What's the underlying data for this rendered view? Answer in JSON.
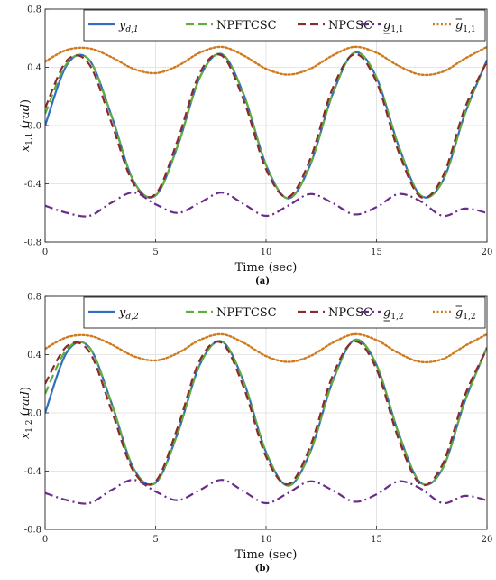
{
  "chart_data": [
    {
      "type": "line",
      "caption": "(a)",
      "xlabel": "Time (sec)",
      "ylabel": "x1,1 (rad)",
      "xlim": [
        0,
        20
      ],
      "ylim": [
        -0.8,
        0.8
      ],
      "xticks": [
        0,
        5,
        10,
        15,
        20
      ],
      "yticks": [
        -0.8,
        -0.4,
        0.0,
        0.4,
        0.8
      ],
      "ytick_labels": [
        "-0.8",
        "-0.4",
        "0.0",
        "0.4",
        "0.8"
      ],
      "grid": true,
      "legend_position": "top",
      "x": [
        0,
        1,
        2,
        3,
        4,
        5,
        6,
        7,
        8,
        9,
        10,
        11,
        12,
        13,
        14,
        15,
        16,
        17,
        18,
        19,
        20
      ],
      "series": [
        {
          "name": "y_{d,1}",
          "label_main": "y",
          "label_sub": "d,1",
          "color": "#2f6fc0",
          "dash": "solid",
          "values": [
            0.0,
            0.42,
            0.45,
            0.07,
            -0.38,
            -0.48,
            -0.14,
            0.33,
            0.49,
            0.21,
            -0.27,
            -0.5,
            -0.27,
            0.21,
            0.5,
            0.33,
            -0.14,
            -0.48,
            -0.38,
            0.08,
            0.45
          ]
        },
        {
          "name": "NPFTCSC",
          "label_main": "NPFTCSC",
          "label_sub": "",
          "color": "#5fae3a",
          "dash": "dashed",
          "values": [
            0.08,
            0.43,
            0.45,
            0.07,
            -0.38,
            -0.48,
            -0.14,
            0.33,
            0.49,
            0.21,
            -0.27,
            -0.5,
            -0.27,
            0.21,
            0.5,
            0.33,
            -0.14,
            -0.48,
            -0.38,
            0.08,
            0.45
          ]
        },
        {
          "name": "NPCSC",
          "label_main": "NPCSC",
          "label_sub": "",
          "color": "#8b2a2a",
          "dash": "dashed",
          "values": [
            0.12,
            0.45,
            0.42,
            0.02,
            -0.4,
            -0.47,
            -0.1,
            0.36,
            0.48,
            0.17,
            -0.3,
            -0.49,
            -0.23,
            0.25,
            0.49,
            0.3,
            -0.18,
            -0.49,
            -0.35,
            0.12,
            0.44
          ]
        },
        {
          "name": "g_{1,1}",
          "label_main": "g",
          "label_sub": "1,1",
          "color": "#6a2c8a",
          "dash": "dashdot",
          "values": [
            -0.55,
            -0.6,
            -0.62,
            -0.53,
            -0.46,
            -0.54,
            -0.6,
            -0.53,
            -0.46,
            -0.54,
            -0.62,
            -0.55,
            -0.47,
            -0.53,
            -0.61,
            -0.56,
            -0.47,
            -0.52,
            -0.62,
            -0.57,
            -0.6
          ]
        },
        {
          "name": "ḡ_{1,1}",
          "label_main": "g",
          "label_sub": "1,1",
          "color": "#d07a1e",
          "dash": "dotted",
          "values": [
            0.44,
            0.52,
            0.53,
            0.47,
            0.39,
            0.36,
            0.41,
            0.5,
            0.54,
            0.48,
            0.39,
            0.35,
            0.39,
            0.48,
            0.54,
            0.5,
            0.41,
            0.35,
            0.37,
            0.46,
            0.54
          ]
        }
      ]
    },
    {
      "type": "line",
      "caption": "(b)",
      "xlabel": "Time (sec)",
      "ylabel": "x1,2 (rad)",
      "xlim": [
        0,
        20
      ],
      "ylim": [
        -0.8,
        0.8
      ],
      "xticks": [
        0,
        5,
        10,
        15,
        20
      ],
      "yticks": [
        -0.8,
        -0.4,
        0.0,
        0.4,
        0.8
      ],
      "ytick_labels": [
        "-0.8",
        "-0.4",
        "0.0",
        "0.4",
        "0.8"
      ],
      "grid": true,
      "legend_position": "top",
      "x": [
        0,
        1,
        2,
        3,
        4,
        5,
        6,
        7,
        8,
        9,
        10,
        11,
        12,
        13,
        14,
        15,
        16,
        17,
        18,
        19,
        20
      ],
      "series": [
        {
          "name": "y_{d,2}",
          "label_main": "y",
          "label_sub": "d,2",
          "color": "#2f6fc0",
          "dash": "solid",
          "values": [
            0.0,
            0.42,
            0.45,
            0.07,
            -0.38,
            -0.48,
            -0.14,
            0.33,
            0.49,
            0.21,
            -0.27,
            -0.5,
            -0.27,
            0.21,
            0.5,
            0.33,
            -0.14,
            -0.48,
            -0.38,
            0.08,
            0.45
          ]
        },
        {
          "name": "NPFTCSC",
          "label_main": "NPFTCSC",
          "label_sub": "",
          "color": "#5fae3a",
          "dash": "dashed",
          "values": [
            0.13,
            0.44,
            0.45,
            0.07,
            -0.38,
            -0.48,
            -0.14,
            0.33,
            0.49,
            0.21,
            -0.27,
            -0.5,
            -0.27,
            0.21,
            0.5,
            0.33,
            -0.14,
            -0.48,
            -0.38,
            0.08,
            0.45
          ]
        },
        {
          "name": "NPCSC",
          "label_main": "NPCSC",
          "label_sub": "",
          "color": "#8b2a2a",
          "dash": "dashed",
          "values": [
            0.2,
            0.46,
            0.42,
            0.02,
            -0.4,
            -0.47,
            -0.1,
            0.36,
            0.48,
            0.17,
            -0.3,
            -0.49,
            -0.23,
            0.25,
            0.49,
            0.3,
            -0.18,
            -0.49,
            -0.35,
            0.12,
            0.44
          ]
        },
        {
          "name": "g_{1,2}",
          "label_main": "g",
          "label_sub": "1,2",
          "color": "#6a2c8a",
          "dash": "dashdot",
          "values": [
            -0.55,
            -0.6,
            -0.62,
            -0.53,
            -0.46,
            -0.54,
            -0.6,
            -0.53,
            -0.46,
            -0.54,
            -0.62,
            -0.55,
            -0.47,
            -0.53,
            -0.61,
            -0.56,
            -0.47,
            -0.52,
            -0.62,
            -0.57,
            -0.6
          ]
        },
        {
          "name": "ḡ_{1,2}",
          "label_main": "g",
          "label_sub": "1,2",
          "color": "#d07a1e",
          "dash": "dotted",
          "values": [
            0.44,
            0.52,
            0.53,
            0.47,
            0.39,
            0.36,
            0.41,
            0.5,
            0.54,
            0.48,
            0.39,
            0.35,
            0.39,
            0.48,
            0.54,
            0.5,
            0.41,
            0.35,
            0.37,
            0.46,
            0.54
          ]
        }
      ]
    }
  ]
}
